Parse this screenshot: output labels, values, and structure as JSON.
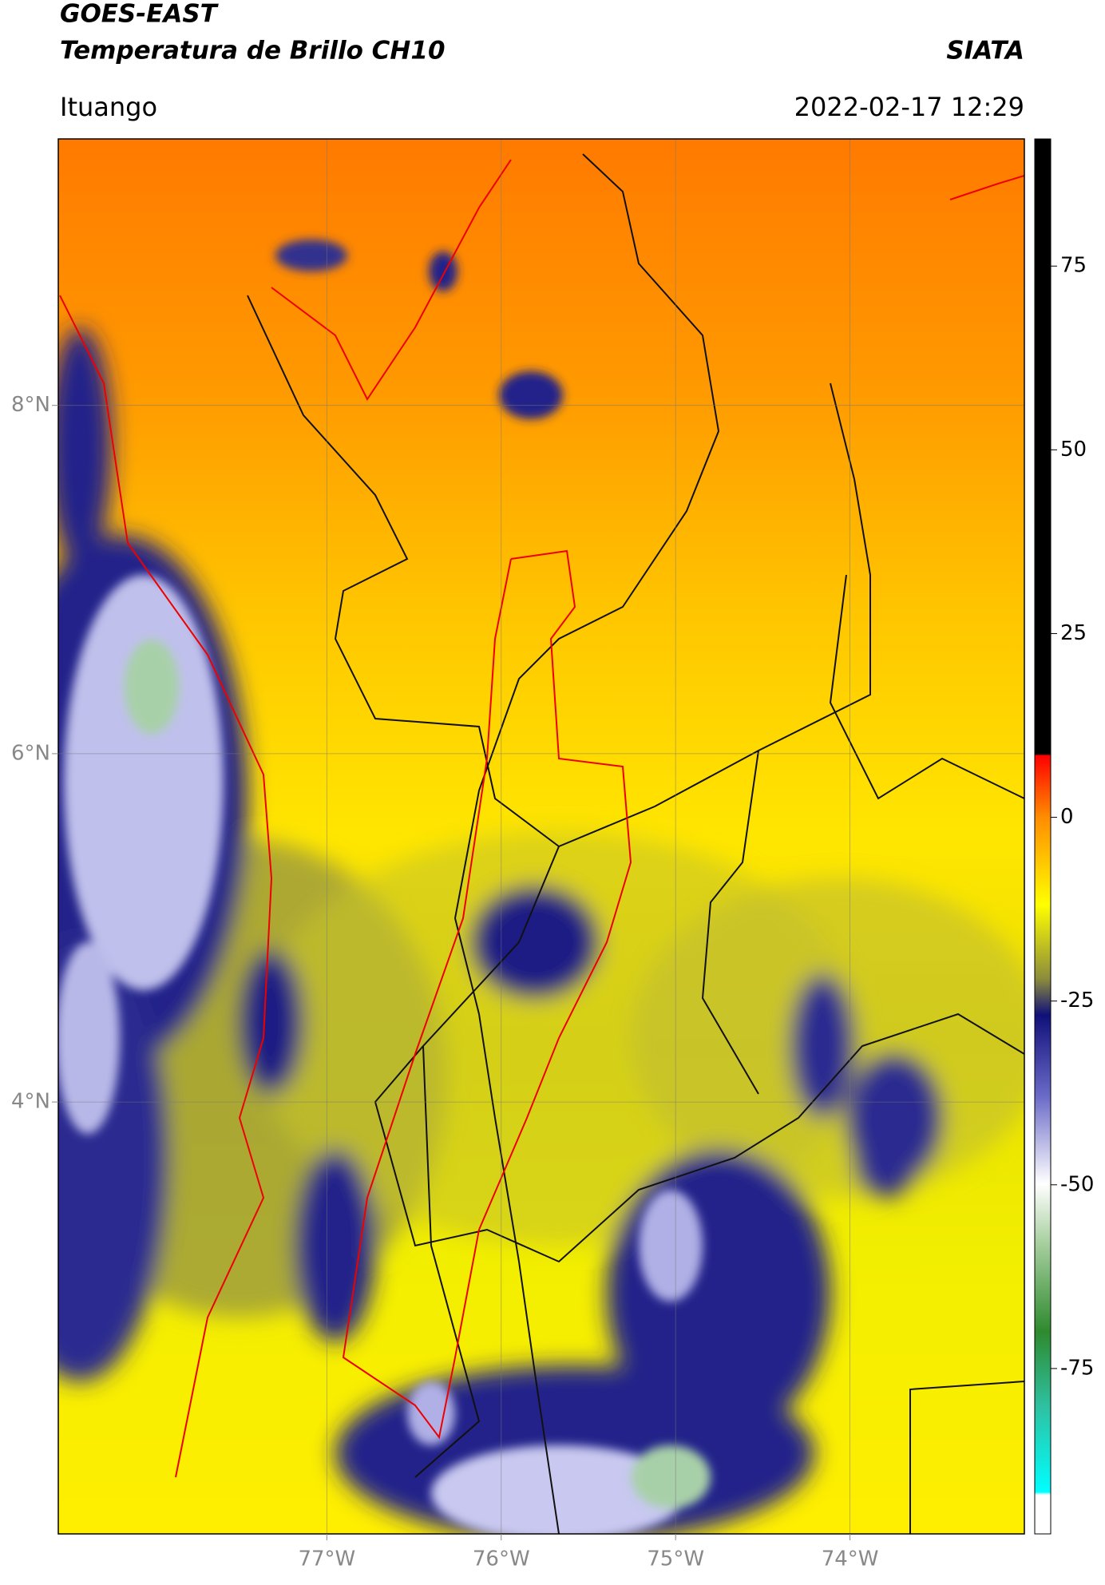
{
  "header": {
    "title": "GOES-EAST",
    "subtitle": "Temperatura de Brillo CH10",
    "source": "SIATA",
    "location": "Ituango",
    "datetime": "2022-02-17 12:29"
  },
  "map": {
    "xlim": [
      -78.54,
      -73.0
    ],
    "ylim": [
      1.52,
      9.53
    ],
    "xticks": [
      {
        "value": -77,
        "label": "77°W"
      },
      {
        "value": -76,
        "label": "76°W"
      },
      {
        "value": -75,
        "label": "75°W"
      },
      {
        "value": -74,
        "label": "74°W"
      }
    ],
    "yticks": [
      {
        "value": 8,
        "label": "8°N"
      },
      {
        "value": 6,
        "label": "6°N"
      },
      {
        "value": 4,
        "label": "4°N"
      }
    ],
    "grid": true
  },
  "colorbar": {
    "lim": [
      -97.5,
      92.3
    ],
    "ticks": [
      75,
      50,
      25,
      0,
      -25,
      -50,
      -75
    ]
  }
}
